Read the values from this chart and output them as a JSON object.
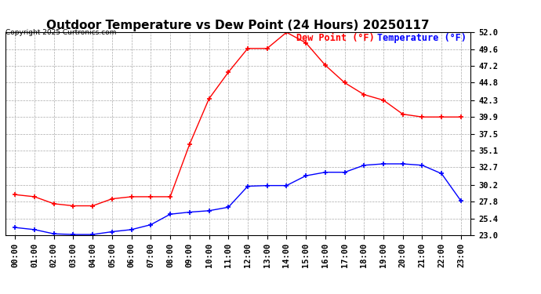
{
  "title": "Outdoor Temperature vs Dew Point (24 Hours) 20250117",
  "copyright": "Copyright 2025 Curtronics.com",
  "legend_dew": "Dew Point (°F)",
  "legend_temp": "Temperature (°F)",
  "hours": [
    "00:00",
    "01:00",
    "02:00",
    "03:00",
    "04:00",
    "05:00",
    "06:00",
    "07:00",
    "08:00",
    "09:00",
    "10:00",
    "11:00",
    "12:00",
    "13:00",
    "14:00",
    "15:00",
    "16:00",
    "17:00",
    "18:00",
    "19:00",
    "20:00",
    "21:00",
    "22:00",
    "23:00"
  ],
  "temperature": [
    24.1,
    23.8,
    23.2,
    23.1,
    23.1,
    23.5,
    23.8,
    24.5,
    26.0,
    26.3,
    26.5,
    27.0,
    30.0,
    30.1,
    30.1,
    31.5,
    32.0,
    32.0,
    33.0,
    33.2,
    33.2,
    33.0,
    31.8,
    27.9
  ],
  "dew_point": [
    28.8,
    28.5,
    27.5,
    27.2,
    27.2,
    28.2,
    28.5,
    28.5,
    28.5,
    36.0,
    42.5,
    46.3,
    49.7,
    49.7,
    52.0,
    50.5,
    47.3,
    44.8,
    43.1,
    42.3,
    40.3,
    39.9,
    39.9,
    39.9
  ],
  "temp_color": "blue",
  "dew_color": "red",
  "bg_color": "white",
  "grid_color": "#aaaaaa",
  "ylim_min": 23.0,
  "ylim_max": 52.0,
  "yticks": [
    23.0,
    25.4,
    27.8,
    30.2,
    32.7,
    35.1,
    37.5,
    39.9,
    42.3,
    44.8,
    47.2,
    49.6,
    52.0
  ],
  "title_fontsize": 11,
  "tick_fontsize": 7.5,
  "marker": "+",
  "marker_size": 5,
  "linewidth": 1.0
}
